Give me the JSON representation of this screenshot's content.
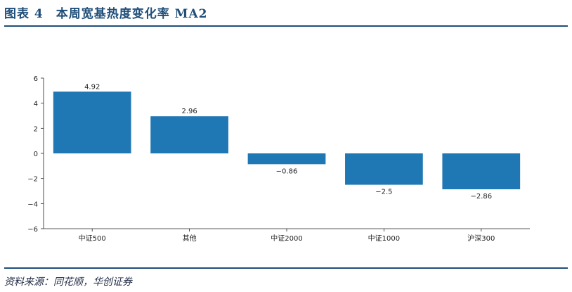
{
  "header": {
    "title": "图表 4　本周宽基热度变化率 MA2"
  },
  "footer": {
    "source": "资料来源：同花顺，华创证券"
  },
  "chart_data": {
    "type": "bar",
    "title": "",
    "xlabel": "",
    "ylabel": "",
    "categories": [
      "中证500",
      "其他",
      "中证2000",
      "中证1000",
      "沪深300"
    ],
    "values": [
      4.92,
      2.96,
      -0.86,
      -2.5,
      -2.86
    ],
    "value_labels": [
      "4.92",
      "2.96",
      "−0.86",
      "−2.5",
      "−2.86"
    ],
    "ylim": [
      -6,
      6
    ],
    "yticks": [
      -6,
      -4,
      -2,
      0,
      2,
      4,
      6
    ],
    "ytick_labels": [
      "−6",
      "−4",
      "−2",
      "0",
      "2",
      "4",
      "6"
    ],
    "bar_color": "#1f77b4",
    "grid": false,
    "legend": "none"
  }
}
